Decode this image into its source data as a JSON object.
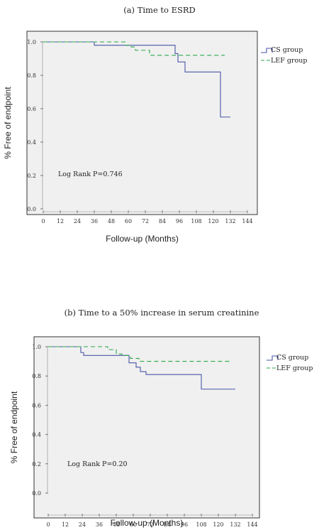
{
  "chart_data": [
    {
      "type": "line",
      "title": "(a) Time to ESRD",
      "xlabel": "Follow-up (Months)",
      "ylabel": "% Free of endpoint",
      "xlim": [
        0,
        144
      ],
      "ylim": [
        0,
        1.0
      ],
      "x_ticks": [
        "0",
        "12",
        "24",
        "36",
        "48",
        "60",
        "72",
        "84",
        "96",
        "108",
        "120",
        "132",
        "144"
      ],
      "y_ticks": [
        "0.0",
        "0.2",
        "0.4",
        "0.6",
        "0.8",
        "1.0"
      ],
      "annotation": "Log Rank   P=0.746",
      "legend": {
        "position": "right",
        "entries": [
          "CS group",
          "LEF group"
        ]
      },
      "series": [
        {
          "name": "CS group",
          "color": "#4a56a8",
          "dash": "solid",
          "steps": [
            [
              0,
              1.0
            ],
            [
              36,
              0.98
            ],
            [
              93,
              0.93
            ],
            [
              95,
              0.88
            ],
            [
              100,
              0.82
            ],
            [
              125,
              0.55
            ],
            [
              132,
              0.55
            ]
          ]
        },
        {
          "name": "LEF group",
          "color": "#2aa84a",
          "dash": "dashed",
          "steps": [
            [
              0,
              1.0
            ],
            [
              58,
              0.98
            ],
            [
              62,
              0.97
            ],
            [
              65,
              0.95
            ],
            [
              75,
              0.92
            ],
            [
              128,
              0.92
            ]
          ]
        }
      ]
    },
    {
      "type": "line",
      "title": "(b) Time to a 50% increase in serum creatinine",
      "xlabel": "Follow-up (Months)",
      "ylabel": "% Free of endpoint",
      "xlim": [
        0,
        144
      ],
      "ylim": [
        0,
        1.0
      ],
      "x_ticks": [
        "0",
        "12",
        "24",
        "36",
        "48",
        "60",
        "72",
        "84",
        "96",
        "108",
        "120",
        "132",
        "144"
      ],
      "y_ticks": [
        "0.0",
        "0.2",
        "0.4",
        "0.6",
        "0.8",
        "1.0"
      ],
      "annotation": "Log Rank   P=0.20",
      "legend": {
        "position": "right",
        "entries": [
          "CS group",
          "LEF group"
        ]
      },
      "series": [
        {
          "name": "CS group",
          "color": "#4a56a8",
          "dash": "solid",
          "steps": [
            [
              0,
              1.0
            ],
            [
              23,
              0.96
            ],
            [
              25,
              0.94
            ],
            [
              57,
              0.89
            ],
            [
              62,
              0.86
            ],
            [
              65,
              0.83
            ],
            [
              69,
              0.81
            ],
            [
              108,
              0.71
            ],
            [
              132,
              0.71
            ]
          ]
        },
        {
          "name": "LEF group",
          "color": "#2aa84a",
          "dash": "dashed",
          "steps": [
            [
              0,
              1.0
            ],
            [
              42,
              0.98
            ],
            [
              48,
              0.95
            ],
            [
              52,
              0.94
            ],
            [
              58,
              0.92
            ],
            [
              64,
              0.9
            ],
            [
              128,
              0.9
            ]
          ]
        }
      ]
    }
  ]
}
